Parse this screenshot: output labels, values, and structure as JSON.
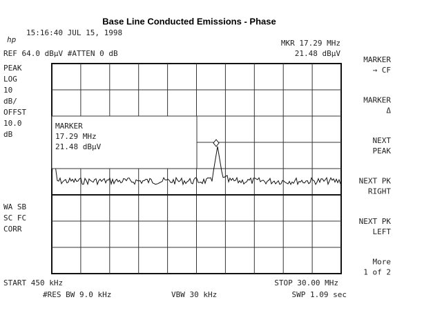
{
  "header": {
    "title": "Base Line Conducted Emissions - Phase",
    "logo": "hp",
    "timestamp": "15:16:40 JUL 15, 1998",
    "marker_freq": "MKR 17.29 MHz",
    "ref_level": "REF 64.0 dBµV #ATTEN 0 dB",
    "marker_level": "21.48 dBµV"
  },
  "left_labels": [
    "PEAK",
    "LOG",
    "10",
    "dB/",
    "OFFST",
    "10.0",
    "dB"
  ],
  "left_labels_lower": [
    "WA SB",
    "SC FC",
    "CORR"
  ],
  "marker_box": [
    "MARKER",
    "17.29 MHz",
    "21.48 dBµV"
  ],
  "softkeys": [
    [
      "MARKER",
      "→ CF"
    ],
    [
      "MARKER",
      "Δ"
    ],
    [
      "NEXT",
      "PEAK"
    ],
    [
      "NEXT PK",
      "RIGHT"
    ],
    [
      "NEXT PK",
      "LEFT"
    ],
    [
      "More",
      "1 of 2"
    ]
  ],
  "footer": {
    "start": "START 450 kHz",
    "stop": "STOP 30.00 MHz",
    "res_bw": "#RES BW 9.0 kHz",
    "vbw": "VBW 30 kHz",
    "sweep": "SWP 1.09 sec"
  }
}
